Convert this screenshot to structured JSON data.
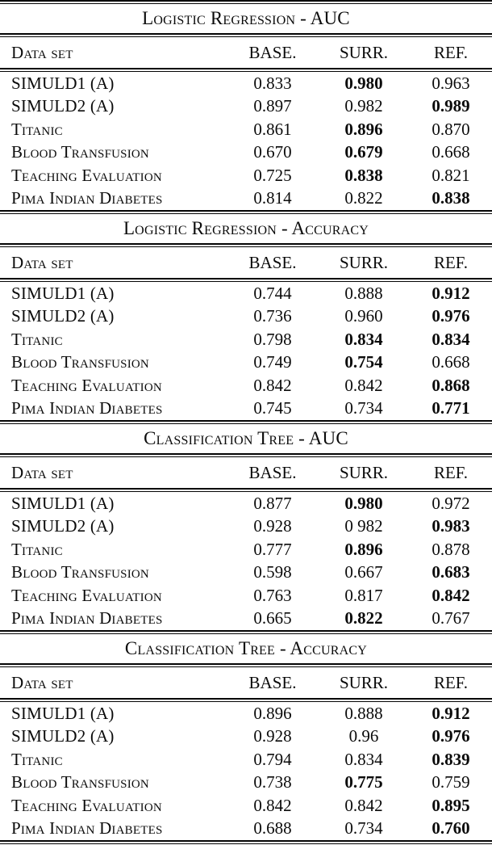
{
  "tables": [
    {
      "title": "Logistic Regression - AUC",
      "columns": [
        "Data set",
        "BASE.",
        "SURR.",
        "REF."
      ],
      "rows": [
        {
          "dataset": "SIMULD1 (A)",
          "values": [
            "0.833",
            "0.980",
            "0.963"
          ],
          "bold": [
            false,
            true,
            false
          ]
        },
        {
          "dataset": "SIMULD2 (A)",
          "values": [
            "0.897",
            "0.982",
            "0.989"
          ],
          "bold": [
            false,
            false,
            true
          ]
        },
        {
          "dataset": "Titanic",
          "values": [
            "0.861",
            "0.896",
            "0.870"
          ],
          "bold": [
            false,
            true,
            false
          ]
        },
        {
          "dataset": "Blood Transfusion",
          "values": [
            "0.670",
            "0.679",
            "0.668"
          ],
          "bold": [
            false,
            true,
            false
          ]
        },
        {
          "dataset": "Teaching Evaluation",
          "values": [
            "0.725",
            "0.838",
            "0.821"
          ],
          "bold": [
            false,
            true,
            false
          ]
        },
        {
          "dataset": "Pima Indian Diabetes",
          "values": [
            "0.814",
            "0.822",
            "0.838"
          ],
          "bold": [
            false,
            false,
            true
          ]
        }
      ]
    },
    {
      "title": "Logistic Regression - Accuracy",
      "columns": [
        "Data set",
        "BASE.",
        "SURR.",
        "REF."
      ],
      "rows": [
        {
          "dataset": "SIMULD1 (A)",
          "values": [
            "0.744",
            "0.888",
            "0.912"
          ],
          "bold": [
            false,
            false,
            true
          ]
        },
        {
          "dataset": "SIMULD2 (A)",
          "values": [
            "0.736",
            "0.960",
            "0.976"
          ],
          "bold": [
            false,
            false,
            true
          ]
        },
        {
          "dataset": "Titanic",
          "values": [
            "0.798",
            "0.834",
            "0.834"
          ],
          "bold": [
            false,
            true,
            true
          ]
        },
        {
          "dataset": "Blood Transfusion",
          "values": [
            "0.749",
            "0.754",
            "0.668"
          ],
          "bold": [
            false,
            true,
            false
          ]
        },
        {
          "dataset": "Teaching Evaluation",
          "values": [
            "0.842",
            "0.842",
            "0.868"
          ],
          "bold": [
            false,
            false,
            true
          ]
        },
        {
          "dataset": "Pima Indian Diabetes",
          "values": [
            "0.745",
            "0.734",
            "0.771"
          ],
          "bold": [
            false,
            false,
            true
          ]
        }
      ]
    },
    {
      "title": "Classification Tree - AUC",
      "columns": [
        "Data set",
        "BASE.",
        "SURR.",
        "REF."
      ],
      "rows": [
        {
          "dataset": "SIMULD1 (A)",
          "values": [
            "0.877",
            "0.980",
            "0.972"
          ],
          "bold": [
            false,
            true,
            false
          ]
        },
        {
          "dataset": "SIMULD2 (A)",
          "values": [
            "0.928",
            "0 982",
            "0.983"
          ],
          "bold": [
            false,
            false,
            true
          ]
        },
        {
          "dataset": "Titanic",
          "values": [
            "0.777",
            "0.896",
            "0.878"
          ],
          "bold": [
            false,
            true,
            false
          ]
        },
        {
          "dataset": "Blood Transfusion",
          "values": [
            "0.598",
            "0.667",
            "0.683"
          ],
          "bold": [
            false,
            false,
            true
          ]
        },
        {
          "dataset": "Teaching Evaluation",
          "values": [
            "0.763",
            "0.817",
            "0.842"
          ],
          "bold": [
            false,
            false,
            true
          ]
        },
        {
          "dataset": "Pima Indian Diabetes",
          "values": [
            "0.665",
            "0.822",
            "0.767"
          ],
          "bold": [
            false,
            true,
            false
          ]
        }
      ]
    },
    {
      "title": "Classification Tree - Accuracy",
      "columns": [
        "Data set",
        "BASE.",
        "SURR.",
        "REF."
      ],
      "rows": [
        {
          "dataset": "SIMULD1 (A)",
          "values": [
            "0.896",
            "0.888",
            "0.912"
          ],
          "bold": [
            false,
            false,
            true
          ]
        },
        {
          "dataset": "SIMULD2 (A)",
          "values": [
            "0.928",
            "0.96",
            "0.976"
          ],
          "bold": [
            false,
            false,
            true
          ]
        },
        {
          "dataset": "Titanic",
          "values": [
            "0.794",
            "0.834",
            "0.839"
          ],
          "bold": [
            false,
            false,
            true
          ]
        },
        {
          "dataset": "Blood Transfusion",
          "values": [
            "0.738",
            "0.775",
            "0.759"
          ],
          "bold": [
            false,
            true,
            false
          ]
        },
        {
          "dataset": "Teaching Evaluation",
          "values": [
            "0.842",
            "0.842",
            "0.895"
          ],
          "bold": [
            false,
            false,
            true
          ]
        },
        {
          "dataset": "Pima Indian Diabetes",
          "values": [
            "0.688",
            "0.734",
            "0.760"
          ],
          "bold": [
            false,
            false,
            true
          ]
        }
      ]
    }
  ]
}
